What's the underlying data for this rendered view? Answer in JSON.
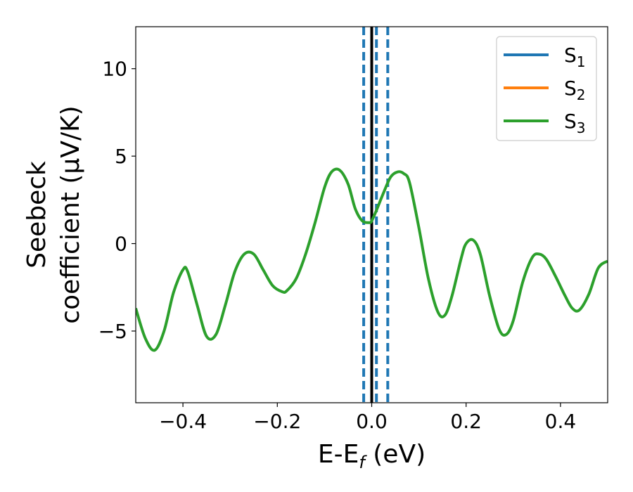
{
  "chart_data": {
    "type": "line",
    "xlabel_main": "E-E",
    "xlabel_sub": "f",
    "xlabel_unit": " (eV)",
    "ylabel_line1": "Seebeck",
    "ylabel_line2": "coefficient  (μV/K)",
    "xlim": [
      -0.5,
      0.5
    ],
    "ylim": [
      -9.1,
      12.4
    ],
    "xticks": [
      -0.4,
      -0.2,
      0.0,
      0.2,
      0.4
    ],
    "xtick_labels": [
      "−0.4",
      "−0.2",
      "0.0",
      "0.2",
      "0.4"
    ],
    "yticks": [
      -5,
      0,
      5,
      10
    ],
    "ytick_labels": [
      "−5",
      "0",
      "5",
      "10"
    ],
    "legend_position": "top-right",
    "legend": [
      {
        "base": "S",
        "sub": "1",
        "color": "#1f77b4"
      },
      {
        "base": "S",
        "sub": "2",
        "color": "#ff7f0e"
      },
      {
        "base": "S",
        "sub": "3",
        "color": "#2ca02c"
      }
    ],
    "vlines": [
      {
        "x": 0.0,
        "style": "solid",
        "color": "#000000"
      },
      {
        "x": -0.017,
        "style": "dashed",
        "color": "#1f77b4"
      },
      {
        "x": 0.01,
        "style": "dashed",
        "color": "#1f77b4"
      },
      {
        "x": 0.034,
        "style": "dashed",
        "color": "#1f77b4"
      }
    ],
    "series": [
      {
        "color": "#2ca02c",
        "x": [
          -0.5,
          -0.48,
          -0.46,
          -0.44,
          -0.42,
          -0.4,
          -0.39,
          -0.37,
          -0.35,
          -0.33,
          -0.31,
          -0.29,
          -0.27,
          -0.25,
          -0.23,
          -0.21,
          -0.19,
          -0.18,
          -0.16,
          -0.14,
          -0.12,
          -0.1,
          -0.085,
          -0.068,
          -0.05,
          -0.035,
          -0.02,
          -0.005,
          0.0,
          0.01,
          0.025,
          0.04,
          0.055,
          0.068,
          0.08,
          0.1,
          0.12,
          0.14,
          0.155,
          0.17,
          0.19,
          0.2,
          0.215,
          0.23,
          0.25,
          0.27,
          0.285,
          0.3,
          0.32,
          0.34,
          0.355,
          0.37,
          0.39,
          0.41,
          0.425,
          0.44,
          0.46,
          0.48,
          0.5
        ],
        "y": [
          -3.7,
          -5.4,
          -6.1,
          -5.0,
          -2.8,
          -1.5,
          -1.6,
          -3.5,
          -5.3,
          -5.2,
          -3.5,
          -1.6,
          -0.6,
          -0.6,
          -1.5,
          -2.4,
          -2.75,
          -2.7,
          -2.0,
          -0.6,
          1.2,
          3.2,
          4.1,
          4.2,
          3.4,
          2.0,
          1.3,
          1.2,
          1.3,
          1.9,
          2.9,
          3.8,
          4.1,
          4.0,
          3.5,
          0.9,
          -2.0,
          -3.9,
          -4.1,
          -3.0,
          -0.8,
          0.0,
          0.2,
          -0.6,
          -3.0,
          -4.9,
          -5.2,
          -4.4,
          -2.2,
          -0.8,
          -0.6,
          -0.9,
          -1.9,
          -3.0,
          -3.7,
          -3.8,
          -2.9,
          -1.4,
          -1.0
        ]
      }
    ]
  }
}
